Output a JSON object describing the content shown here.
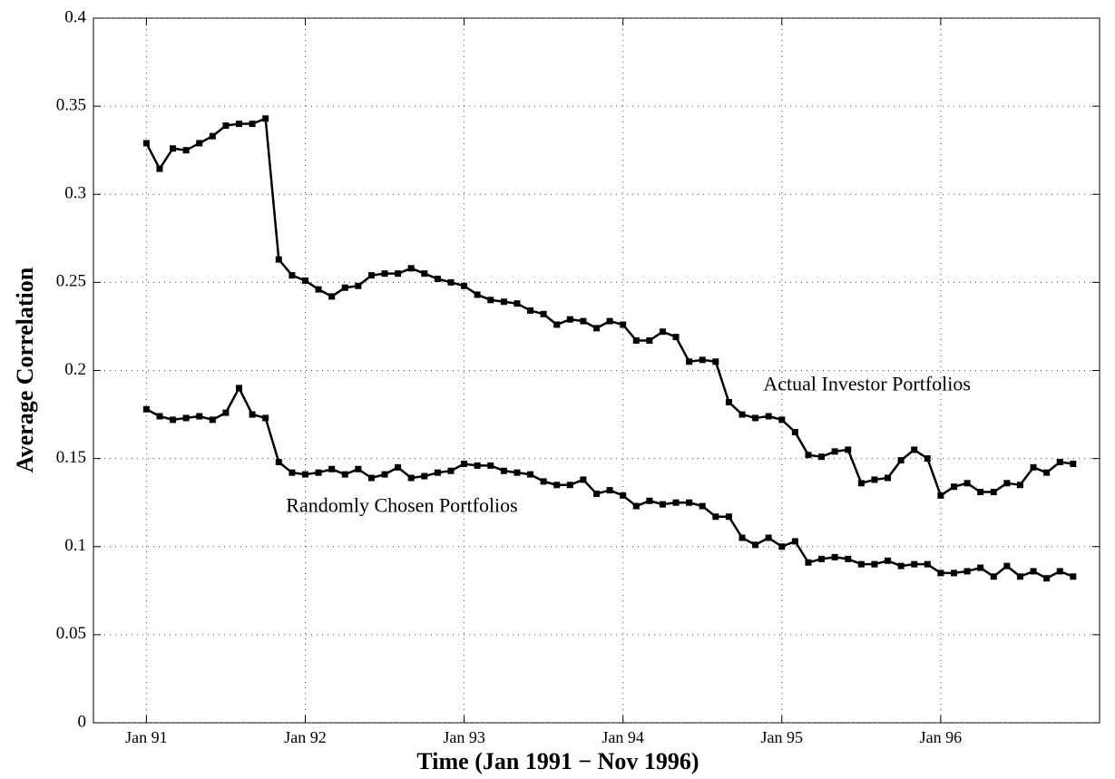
{
  "chart_data": {
    "type": "line",
    "xlabel": "Time (Jan 1991 − Nov 1996)",
    "ylabel": "Average Correlation",
    "x": [
      "1991-01",
      "1991-02",
      "1991-03",
      "1991-04",
      "1991-05",
      "1991-06",
      "1991-07",
      "1991-08",
      "1991-09",
      "1991-10",
      "1991-11",
      "1991-12",
      "1992-01",
      "1992-02",
      "1992-03",
      "1992-04",
      "1992-05",
      "1992-06",
      "1992-07",
      "1992-08",
      "1992-09",
      "1992-10",
      "1992-11",
      "1992-12",
      "1993-01",
      "1993-02",
      "1993-03",
      "1993-04",
      "1993-05",
      "1993-06",
      "1993-07",
      "1993-08",
      "1993-09",
      "1993-10",
      "1993-11",
      "1993-12",
      "1994-01",
      "1994-02",
      "1994-03",
      "1994-04",
      "1994-05",
      "1994-06",
      "1994-07",
      "1994-08",
      "1994-09",
      "1994-10",
      "1994-11",
      "1994-12",
      "1995-01",
      "1995-02",
      "1995-03",
      "1995-04",
      "1995-05",
      "1995-06",
      "1995-07",
      "1995-08",
      "1995-09",
      "1995-10",
      "1995-11",
      "1995-12",
      "1996-01",
      "1996-02",
      "1996-03",
      "1996-04",
      "1996-05",
      "1996-06",
      "1996-07",
      "1996-08",
      "1996-09",
      "1996-10",
      "1996-11"
    ],
    "series": [
      {
        "name": "Actual Investor Portfolios",
        "color": "#000000",
        "values": [
          0.329,
          0.3145,
          0.326,
          0.325,
          0.329,
          0.333,
          0.339,
          0.34,
          0.34,
          0.343,
          0.263,
          0.254,
          0.251,
          0.246,
          0.242,
          0.247,
          0.248,
          0.254,
          0.255,
          0.255,
          0.258,
          0.255,
          0.252,
          0.25,
          0.248,
          0.243,
          0.24,
          0.239,
          0.238,
          0.234,
          0.232,
          0.226,
          0.229,
          0.228,
          0.224,
          0.228,
          0.226,
          0.217,
          0.217,
          0.222,
          0.219,
          0.205,
          0.206,
          0.205,
          0.182,
          0.175,
          0.173,
          0.174,
          0.172,
          0.165,
          0.152,
          0.151,
          0.154,
          0.155,
          0.136,
          0.138,
          0.139,
          0.149,
          0.155,
          0.15,
          0.129,
          0.134,
          0.136,
          0.131,
          0.131,
          0.136,
          0.135,
          0.145,
          0.142,
          0.148,
          0.147
        ]
      },
      {
        "name": "Randomly Chosen Portfolios",
        "color": "#000000",
        "values": [
          0.178,
          0.174,
          0.172,
          0.173,
          0.174,
          0.172,
          0.176,
          0.19,
          0.175,
          0.173,
          0.148,
          0.142,
          0.141,
          0.142,
          0.144,
          0.141,
          0.144,
          0.139,
          0.141,
          0.145,
          0.139,
          0.14,
          0.142,
          0.143,
          0.147,
          0.146,
          0.146,
          0.143,
          0.142,
          0.141,
          0.137,
          0.135,
          0.135,
          0.138,
          0.13,
          0.132,
          0.129,
          0.123,
          0.126,
          0.124,
          0.125,
          0.125,
          0.123,
          0.117,
          0.117,
          0.105,
          0.101,
          0.105,
          0.1,
          0.103,
          0.091,
          0.093,
          0.094,
          0.093,
          0.09,
          0.09,
          0.092,
          0.089,
          0.09,
          0.09,
          0.085,
          0.085,
          0.086,
          0.088,
          0.083,
          0.089,
          0.083,
          0.086,
          0.082,
          0.086,
          0.083
        ]
      }
    ],
    "xlim": [
      "1990-09",
      "1997-01"
    ],
    "xticks": [
      {
        "value": "1991-01",
        "label": "Jan 91"
      },
      {
        "value": "1992-01",
        "label": "Jan 92"
      },
      {
        "value": "1993-01",
        "label": "Jan 93"
      },
      {
        "value": "1994-01",
        "label": "Jan 94"
      },
      {
        "value": "1995-01",
        "label": "Jan 95"
      },
      {
        "value": "1996-01",
        "label": "Jan 96"
      }
    ],
    "ylim": [
      0,
      0.4
    ],
    "yticks": [
      0,
      0.05,
      0.1,
      0.15,
      0.2,
      0.25,
      0.3,
      0.35,
      0.4
    ],
    "grid": true,
    "marker": "square"
  }
}
